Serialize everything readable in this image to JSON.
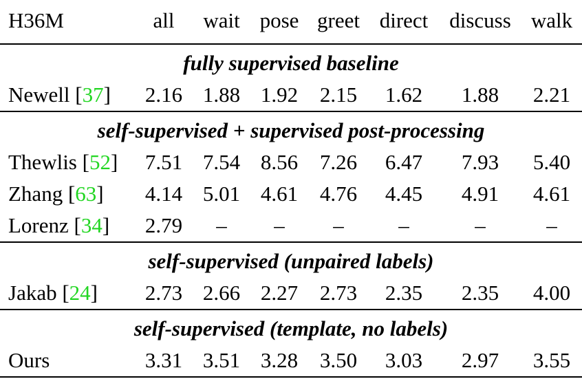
{
  "table": {
    "headers": [
      "H36M",
      "all",
      "wait",
      "pose",
      "greet",
      "direct",
      "discuss",
      "walk"
    ],
    "sections": [
      {
        "title": "fully supervised baseline",
        "rows": [
          {
            "method": "Newell",
            "cite": "37",
            "values": [
              "2.16",
              "1.88",
              "1.92",
              "2.15",
              "1.62",
              "1.88",
              "2.21"
            ]
          }
        ]
      },
      {
        "title": "self-supervised + supervised post-processing",
        "rows": [
          {
            "method": "Thewlis",
            "cite": "52",
            "values": [
              "7.51",
              "7.54",
              "8.56",
              "7.26",
              "6.47",
              "7.93",
              "5.40"
            ]
          },
          {
            "method": "Zhang",
            "cite": "63",
            "values": [
              "4.14",
              "5.01",
              "4.61",
              "4.76",
              "4.45",
              "4.91",
              "4.61"
            ]
          },
          {
            "method": "Lorenz",
            "cite": "34",
            "values": [
              "2.79",
              "–",
              "–",
              "–",
              "–",
              "–",
              "–"
            ]
          }
        ]
      },
      {
        "title": "self-supervised (unpaired labels)",
        "rows": [
          {
            "method": "Jakab",
            "cite": "24",
            "values": [
              "2.73",
              "2.66",
              "2.27",
              "2.73",
              "2.35",
              "2.35",
              "4.00"
            ]
          }
        ]
      },
      {
        "title": "self-supervised (template, no labels)",
        "rows": [
          {
            "method": "Ours",
            "cite": "",
            "values": [
              "3.31",
              "3.51",
              "3.28",
              "3.50",
              "3.03",
              "2.97",
              "3.55"
            ]
          }
        ]
      }
    ],
    "cite_color": "#22d622"
  }
}
